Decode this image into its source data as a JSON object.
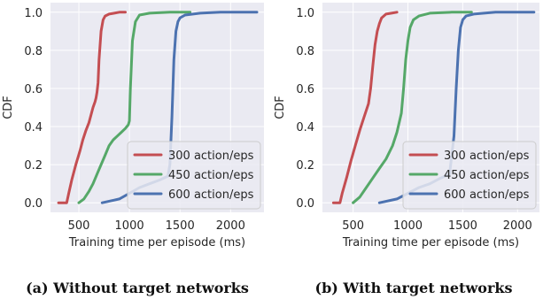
{
  "legend_labels": [
    "300 action/eps",
    "450 action/eps",
    "600 action/eps"
  ],
  "colors": {
    "s300": "#c44e52",
    "s450": "#55a868",
    "s600": "#4c72b0",
    "panel_bg": "#eaeaf2",
    "grid": "#ffffff"
  },
  "chart_data": [
    {
      "type": "line",
      "panel": "a",
      "caption": "(a) Without target networks",
      "xlabel": "Training time per episode (ms)",
      "ylabel": "CDF",
      "xlim": [
        220,
        2330
      ],
      "ylim": [
        -0.05,
        1.05
      ],
      "xticks": [
        "500",
        "1000",
        "1500",
        "2000"
      ],
      "yticks": [
        "0.0",
        "0.2",
        "0.4",
        "0.6",
        "0.8",
        "1.0"
      ],
      "grid": true,
      "legend_position": "lower-right",
      "series": [
        {
          "name": "300 action/eps",
          "color": "#c44e52",
          "x": [
            300,
            380,
            400,
            430,
            470,
            510,
            540,
            570,
            600,
            620,
            640,
            660,
            670,
            680,
            690,
            700,
            720,
            740,
            760,
            800,
            850,
            900,
            960
          ],
          "y": [
            0.0,
            0.0,
            0.05,
            0.12,
            0.2,
            0.27,
            0.33,
            0.38,
            0.42,
            0.46,
            0.5,
            0.53,
            0.55,
            0.58,
            0.63,
            0.75,
            0.9,
            0.96,
            0.98,
            0.99,
            0.995,
            1.0,
            1.0
          ]
        },
        {
          "name": "450 action/eps",
          "color": "#55a868",
          "x": [
            500,
            550,
            600,
            640,
            680,
            720,
            760,
            800,
            840,
            880,
            920,
            960,
            990,
            1000,
            1010,
            1030,
            1060,
            1100,
            1200,
            1400,
            1600
          ],
          "y": [
            0.0,
            0.02,
            0.06,
            0.1,
            0.15,
            0.2,
            0.25,
            0.3,
            0.33,
            0.35,
            0.37,
            0.39,
            0.41,
            0.43,
            0.6,
            0.85,
            0.95,
            0.985,
            0.995,
            1.0,
            1.0
          ]
        },
        {
          "name": "600 action/eps",
          "color": "#4c72b0",
          "x": [
            730,
            900,
            1000,
            1100,
            1200,
            1300,
            1380,
            1400,
            1420,
            1440,
            1460,
            1480,
            1500,
            1550,
            1700,
            1900,
            2100,
            2260
          ],
          "y": [
            0.0,
            0.02,
            0.05,
            0.08,
            0.1,
            0.12,
            0.14,
            0.2,
            0.45,
            0.75,
            0.9,
            0.95,
            0.97,
            0.985,
            0.995,
            1.0,
            1.0,
            1.0
          ]
        }
      ]
    },
    {
      "type": "line",
      "panel": "b",
      "caption": "(b) With target networks",
      "xlabel": "Training time per episode (ms)",
      "ylabel": "CDF",
      "xlim": [
        220,
        2200
      ],
      "ylim": [
        -0.05,
        1.05
      ],
      "xticks": [
        "500",
        "1000",
        "1500",
        "2000"
      ],
      "yticks": [
        "0.0",
        "0.2",
        "0.4",
        "0.6",
        "0.8",
        "1.0"
      ],
      "grid": true,
      "legend_position": "lower-right",
      "series": [
        {
          "name": "300 action/eps",
          "color": "#c44e52",
          "x": [
            320,
            380,
            400,
            440,
            480,
            520,
            560,
            600,
            640,
            660,
            680,
            700,
            720,
            740,
            760,
            800,
            850,
            900
          ],
          "y": [
            0.0,
            0.0,
            0.05,
            0.13,
            0.22,
            0.3,
            0.38,
            0.45,
            0.52,
            0.6,
            0.72,
            0.83,
            0.9,
            0.94,
            0.97,
            0.99,
            0.995,
            1.0
          ]
        },
        {
          "name": "450 action/eps",
          "color": "#55a868",
          "x": [
            500,
            560,
            620,
            680,
            740,
            800,
            860,
            900,
            940,
            960,
            980,
            1000,
            1020,
            1050,
            1100,
            1200,
            1400,
            1580
          ],
          "y": [
            0.0,
            0.03,
            0.08,
            0.13,
            0.18,
            0.23,
            0.3,
            0.37,
            0.47,
            0.6,
            0.75,
            0.85,
            0.92,
            0.96,
            0.98,
            0.995,
            1.0,
            1.0
          ]
        },
        {
          "name": "600 action/eps",
          "color": "#4c72b0",
          "x": [
            740,
            900,
            1000,
            1100,
            1200,
            1300,
            1380,
            1420,
            1440,
            1460,
            1480,
            1500,
            1530,
            1600,
            1800,
            2000,
            2150
          ],
          "y": [
            0.0,
            0.02,
            0.05,
            0.08,
            0.1,
            0.13,
            0.15,
            0.35,
            0.6,
            0.8,
            0.92,
            0.96,
            0.98,
            0.99,
            1.0,
            1.0,
            1.0
          ]
        }
      ]
    }
  ]
}
